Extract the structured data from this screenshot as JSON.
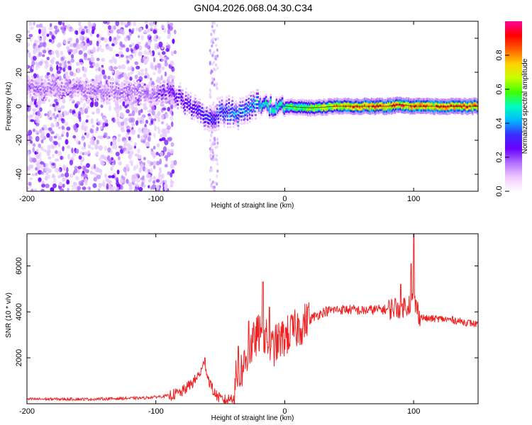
{
  "title": "GN04.2026.068.04.30.C34",
  "colors": {
    "snr_line": "#ee2222",
    "colormap": [
      "#ffffff",
      "#f0c8ff",
      "#b070ff",
      "#6a00ff",
      "#3a2cff",
      "#00b8ff",
      "#00ffc0",
      "#40ff00",
      "#c8ff00",
      "#ffd000",
      "#ff6000",
      "#ff0000",
      "#ff0099"
    ]
  },
  "chart_data": [
    {
      "type": "heatmap",
      "name": "spectrogram",
      "xlabel": "Height of straight line (km)",
      "ylabel": "Frequency (Hz)",
      "xlim": [
        -200,
        150
      ],
      "ylim": [
        -50,
        50
      ],
      "xticks": [
        -200,
        -100,
        0,
        100
      ],
      "yticks": [
        -40,
        -20,
        0,
        20,
        40
      ],
      "ridge": {
        "x": [
          -200,
          -180,
          -160,
          -140,
          -120,
          -100,
          -90,
          -80,
          -70,
          -60,
          -55,
          -50,
          -40,
          -35,
          -30,
          -20,
          -10,
          0,
          20,
          40,
          60,
          80,
          90,
          100,
          120,
          150
        ],
        "freq": [
          10,
          11,
          10,
          9,
          8,
          7,
          9,
          4,
          -2,
          -6,
          -8,
          -3,
          -3,
          -5,
          -3,
          2,
          0,
          0,
          -1,
          0,
          0,
          0,
          1,
          0,
          0,
          0
        ]
      },
      "scatter_noise": {
        "x_range": [
          -200,
          -85
        ],
        "freq_range": [
          -50,
          50
        ]
      },
      "colorbar": {
        "label": "Normalized spectral amplitude",
        "range": [
          0,
          1
        ],
        "ticks": [
          "0.0",
          "0.2",
          "0.4",
          "0.6",
          "0.8"
        ]
      }
    },
    {
      "type": "line",
      "name": "snr",
      "xlabel": "Height of straight line (km)",
      "ylabel": "SNR (10 * v/v)",
      "xlim": [
        -200,
        150
      ],
      "ylim": [
        0,
        7400
      ],
      "xticks": [
        -200,
        -100,
        0,
        100
      ],
      "yticks": [
        2000,
        4000,
        6000
      ],
      "series": [
        {
          "name": "SNR",
          "x": [
            -200,
            -150,
            -110,
            -90,
            -80,
            -70,
            -65,
            -62,
            -60,
            -55,
            -50,
            -45,
            -40,
            -38,
            -35,
            -30,
            -25,
            -20,
            -18,
            -15,
            -10,
            -5,
            0,
            10,
            20,
            30,
            40,
            50,
            60,
            70,
            80,
            85,
            90,
            95,
            98,
            100,
            105,
            110,
            120,
            130,
            140,
            150
          ],
          "y": [
            200,
            200,
            250,
            350,
            500,
            1000,
            1400,
            1800,
            1200,
            500,
            200,
            150,
            300,
            1000,
            1300,
            1900,
            2600,
            3100,
            2600,
            2900,
            2400,
            2700,
            2900,
            3300,
            3700,
            4000,
            4100,
            4100,
            4050,
            4100,
            4100,
            4200,
            4200,
            4300,
            4400,
            4500,
            3800,
            3700,
            3700,
            3650,
            3550,
            3450
          ]
        }
      ],
      "spikes": [
        {
          "x": -62,
          "y": 2000
        },
        {
          "x": -36,
          "y": 2500
        },
        {
          "x": -28,
          "y": 3600
        },
        {
          "x": -17,
          "y": 5300
        },
        {
          "x": -12,
          "y": 4200
        },
        {
          "x": 18,
          "y": 4200
        },
        {
          "x": 90,
          "y": 5200
        },
        {
          "x": 98,
          "y": 6100
        },
        {
          "x": 100,
          "y": 7400
        }
      ]
    }
  ]
}
